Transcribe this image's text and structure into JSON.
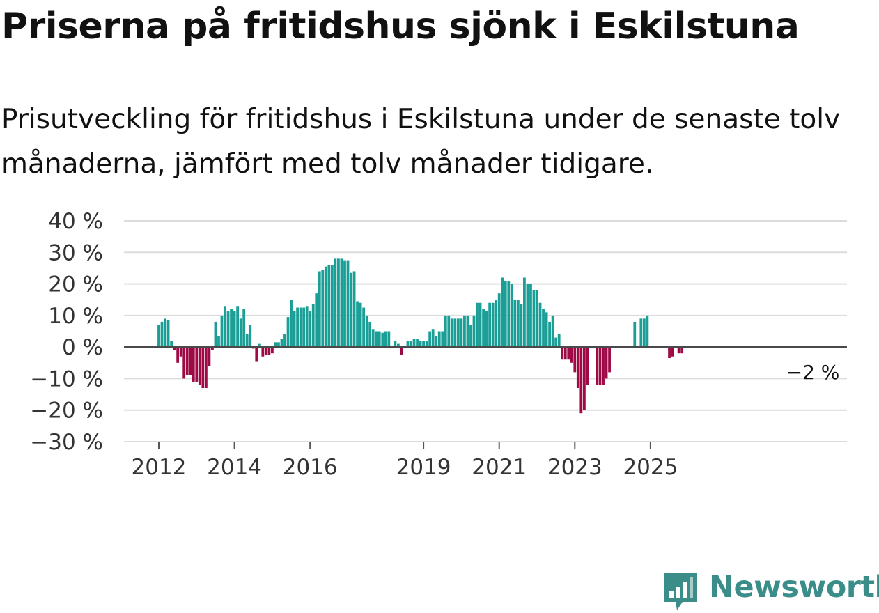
{
  "header": {
    "title": "Priserna på fritidshus sjönk i Eskilstuna",
    "subtitle": "Prisutveckling för fritidshus i Eskilstuna under de senaste tolv månaderna, jämfört med tolv månader tidigare."
  },
  "brand": {
    "name": "Newsworthy",
    "color": "#3a8d88",
    "icon": "newsworthy-logo-icon"
  },
  "chart_data": {
    "type": "bar",
    "title": "Priserna på fritidshus sjönk i Eskilstuna",
    "xlabel": "",
    "ylabel": "",
    "ylim": [
      -30,
      40
    ],
    "y_ticks": [
      40,
      30,
      20,
      10,
      0,
      -10,
      -20,
      -30
    ],
    "y_tick_labels": [
      "40 %",
      "30 %",
      "20 %",
      "10 %",
      "0 %",
      "−10 %",
      "−20 %",
      "−30 %"
    ],
    "x_ticks": [
      {
        "label": "2012",
        "index": 0
      },
      {
        "label": "2014",
        "index": 24
      },
      {
        "label": "2016",
        "index": 48
      },
      {
        "label": "2019",
        "index": 84
      },
      {
        "label": "2021",
        "index": 108
      },
      {
        "label": "2023",
        "index": 132
      },
      {
        "label": "2025",
        "index": 156
      }
    ],
    "start": "2012-01",
    "positive_color": "#1a9e96",
    "negative_color": "#9e0a45",
    "grid": true,
    "annotation": {
      "text": "−2 %",
      "index": 168
    },
    "values": [
      7,
      8,
      9,
      8.5,
      2,
      -1,
      -5,
      -3,
      -10,
      -9,
      -9,
      -11,
      -11,
      -12,
      -13,
      -13,
      -6,
      -1,
      8,
      3.5,
      10,
      13,
      11.5,
      12,
      11.5,
      13,
      9,
      12,
      4,
      7,
      -0.5,
      -4.5,
      1,
      -3,
      -2.5,
      -2.5,
      -2,
      1.5,
      1.5,
      2.5,
      4,
      9.5,
      15,
      11.5,
      12.5,
      12.5,
      12.5,
      13,
      11.5,
      13.5,
      17,
      24,
      24.5,
      25.5,
      26,
      26,
      28,
      28,
      28,
      27.5,
      27.5,
      23.5,
      24,
      14.5,
      14,
      12.5,
      10,
      8,
      5.5,
      5,
      5,
      4.5,
      5,
      5,
      0,
      2,
      1,
      -2.5,
      0,
      2,
      2,
      2.5,
      2.5,
      2,
      2,
      2,
      5,
      5.5,
      3.5,
      5,
      5,
      10,
      10,
      9,
      9,
      9,
      9,
      10,
      10,
      7,
      10,
      14,
      14,
      12,
      11.5,
      14,
      14,
      15,
      17,
      22,
      21,
      21,
      20,
      15,
      15,
      13.5,
      22,
      20,
      20,
      18,
      18,
      14,
      12,
      11,
      8,
      10,
      3,
      4,
      -4,
      -4,
      -4,
      -5,
      -8,
      -13,
      -21,
      -20,
      -12,
      0,
      0,
      -12,
      -12,
      -12,
      -10,
      -8,
      0,
      0,
      0,
      0,
      0,
      0,
      0,
      8,
      0,
      9,
      9,
      10,
      0,
      0,
      0,
      0,
      0,
      0,
      -3.5,
      -3,
      0,
      -2,
      -2
    ]
  }
}
